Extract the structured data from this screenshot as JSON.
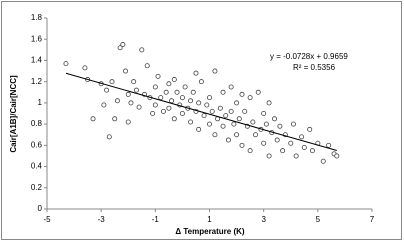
{
  "chart_data": {
    "type": "scatter",
    "x_label": "Δ  Temperature (K)",
    "y_label": "Cair[A1B]/Cair[NCC]",
    "annotations": [
      "y = -0.0728x + 0.9659",
      "R² = 0.5356"
    ],
    "xlim": [
      -5,
      7
    ],
    "xticks": [
      -5,
      -3,
      -1,
      1,
      3,
      5,
      7
    ],
    "ylim": [
      0,
      1.8
    ],
    "yticks": [
      0,
      0.2,
      0.4,
      0.6,
      0.8,
      1,
      1.2,
      1.4,
      1.6,
      1.8
    ],
    "grid": false,
    "series": [
      {
        "color": "#444444",
        "x": [
          -4.3,
          -3.6,
          -3.5,
          -3.3,
          -3.0,
          -2.9,
          -2.8,
          -2.6,
          -2.5,
          -2.4,
          -2.3,
          -2.2,
          -2.1,
          -2.0,
          -2.0,
          -1.9,
          -1.8,
          -1.7,
          -1.6,
          -1.5,
          -1.4,
          -1.3,
          -1.2,
          -1.1,
          -1.0,
          -1.0,
          -0.9,
          -0.8,
          -0.7,
          -0.6,
          -0.5,
          -0.5,
          -0.4,
          -0.3,
          -0.2,
          -0.1,
          0.0,
          0.0,
          0.1,
          0.2,
          0.3,
          0.3,
          0.4,
          0.5,
          0.6,
          0.6,
          0.7,
          0.8,
          0.9,
          1.0,
          1.0,
          1.1,
          1.2,
          1.2,
          1.3,
          1.4,
          1.5,
          1.5,
          1.6,
          1.7,
          1.8,
          1.9,
          2.0,
          2.0,
          2.1,
          2.2,
          2.3,
          2.4,
          2.5,
          2.5,
          2.6,
          2.7,
          2.8,
          2.9,
          3.0,
          3.0,
          3.1,
          3.2,
          3.3,
          3.4,
          3.5,
          3.6,
          3.7,
          3.8,
          4.0,
          4.1,
          4.2,
          4.4,
          4.5,
          4.7,
          4.8,
          5.0,
          5.2,
          5.4,
          5.6,
          5.7,
          -2.7,
          1.8,
          0.5,
          -0.3,
          2.2,
          3.2
        ],
        "values": [
          1.37,
          1.33,
          1.22,
          0.85,
          1.18,
          0.98,
          1.12,
          1.2,
          0.85,
          1.02,
          1.52,
          1.55,
          1.3,
          1.08,
          0.82,
          1.0,
          1.2,
          1.12,
          0.96,
          1.5,
          1.08,
          1.35,
          1.05,
          0.9,
          1.15,
          0.98,
          1.25,
          1.05,
          0.92,
          1.1,
          1.18,
          0.95,
          1.02,
          0.85,
          1.1,
          0.98,
          1.05,
          0.9,
          1.15,
          0.95,
          1.02,
          0.82,
          1.1,
          0.92,
          1.0,
          0.75,
          1.2,
          0.88,
          0.98,
          0.8,
          1.05,
          0.92,
          0.7,
          1.3,
          0.85,
          0.95,
          0.78,
          1.1,
          0.88,
          0.65,
          0.92,
          0.8,
          1.0,
          0.7,
          0.85,
          0.6,
          0.92,
          0.78,
          0.55,
          1.05,
          0.82,
          0.7,
          1.1,
          0.75,
          0.62,
          0.9,
          0.8,
          0.5,
          0.72,
          0.85,
          0.65,
          0.78,
          0.55,
          0.7,
          0.62,
          0.8,
          0.5,
          0.68,
          0.58,
          0.75,
          0.55,
          0.62,
          0.45,
          0.6,
          0.52,
          0.5,
          0.68,
          1.15,
          1.28,
          1.22,
          1.08,
          1.0
        ]
      }
    ],
    "trendline": {
      "color": "#000000",
      "x": [
        -4.3,
        5.7
      ],
      "values": [
        1.279,
        0.551
      ]
    }
  }
}
